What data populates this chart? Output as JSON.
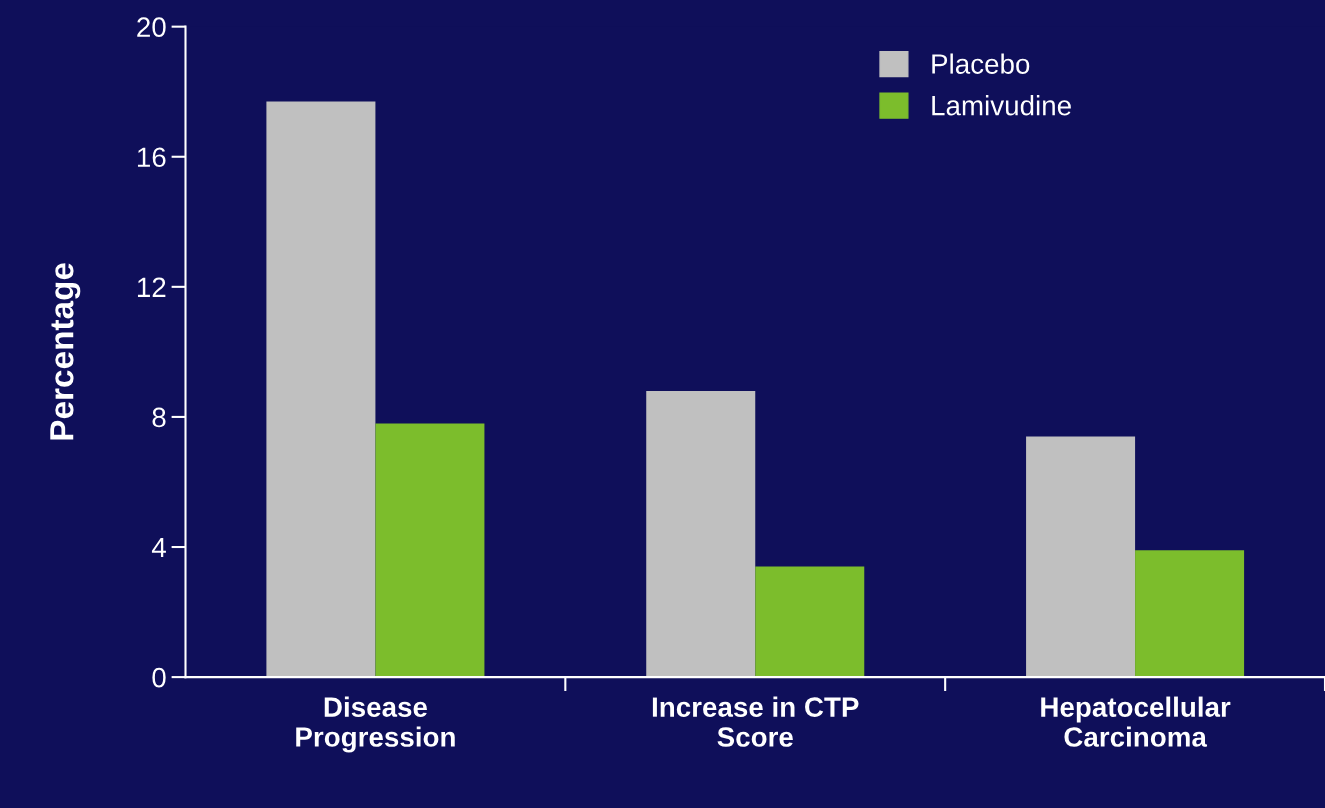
{
  "chart_data": {
    "type": "bar",
    "ylabel": "Percentage",
    "categories": [
      "Disease\nProgression",
      "Increase in CTP\nScore",
      "Hepatocellular\nCarcinoma"
    ],
    "series": [
      {
        "name": "Placebo",
        "color": "#c0c0c0",
        "values": [
          17.7,
          8.8,
          7.4
        ]
      },
      {
        "name": "Lamivudine",
        "color": "#7cbd2c",
        "values": [
          7.8,
          3.4,
          3.9
        ]
      }
    ],
    "ylim": [
      0,
      20
    ],
    "yticks": [
      0,
      4,
      8,
      12,
      16,
      20
    ],
    "grid": false,
    "legend": "top right"
  }
}
